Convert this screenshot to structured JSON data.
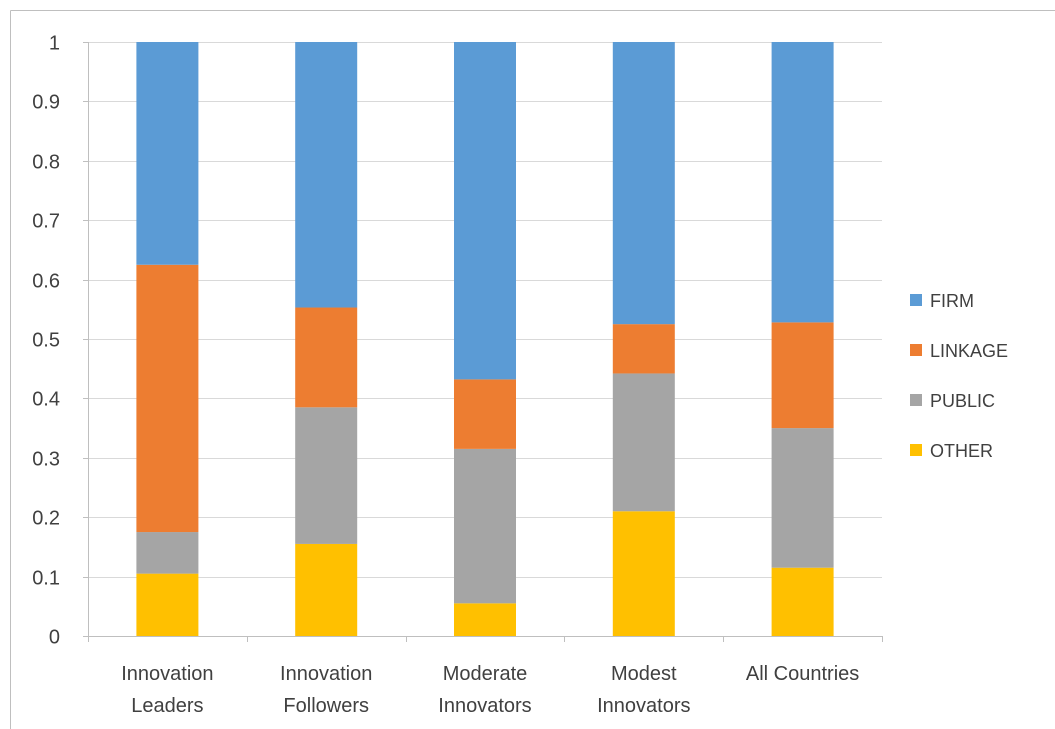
{
  "chart_data": {
    "type": "bar",
    "stacked": true,
    "categories": [
      [
        "Innovation",
        "Leaders"
      ],
      [
        "Innovation",
        "Followers"
      ],
      [
        "Moderate",
        "Innovators"
      ],
      [
        "Modest",
        "Innovators"
      ],
      [
        "All Countries"
      ]
    ],
    "series": [
      {
        "name": "OTHER",
        "color": "#FFC000",
        "values": [
          0.105,
          0.155,
          0.055,
          0.21,
          0.115
        ]
      },
      {
        "name": "PUBLIC",
        "color": "#A5A5A5",
        "values": [
          0.07,
          0.23,
          0.26,
          0.232,
          0.235
        ]
      },
      {
        "name": "LINKAGE",
        "color": "#ED7D31",
        "values": [
          0.45,
          0.168,
          0.117,
          0.083,
          0.178
        ]
      },
      {
        "name": "FIRM",
        "color": "#5B9BD5",
        "values": [
          0.375,
          0.447,
          0.568,
          0.475,
          0.472
        ]
      }
    ],
    "legend_order": [
      "FIRM",
      "LINKAGE",
      "PUBLIC",
      "OTHER"
    ],
    "y_ticks": [
      "0",
      "0.1",
      "0.2",
      "0.3",
      "0.4",
      "0.5",
      "0.6",
      "0.7",
      "0.8",
      "0.9",
      "1"
    ],
    "ylim": [
      0,
      1
    ],
    "grid": true,
    "legend_position": "right",
    "title": "",
    "xlabel": "",
    "ylabel": ""
  }
}
